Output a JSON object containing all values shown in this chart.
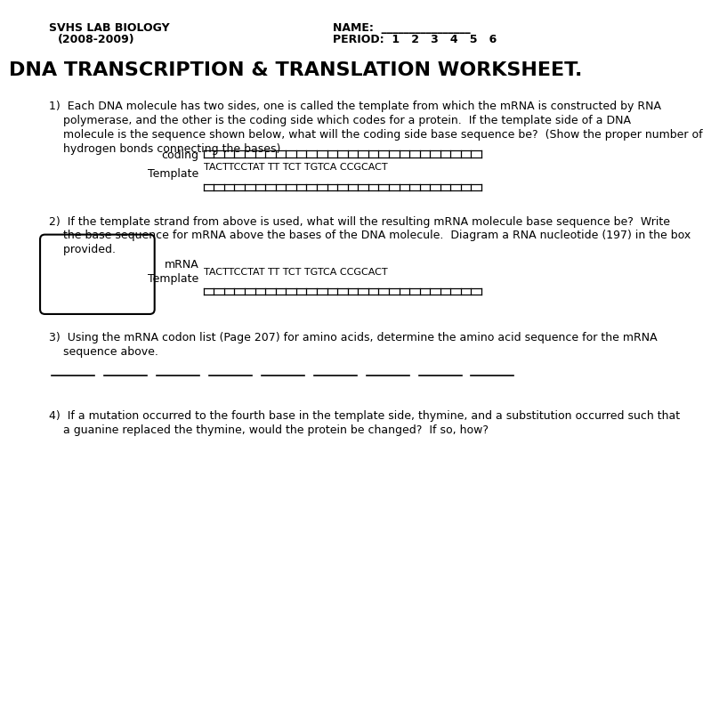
{
  "title": "DNA TRANSCRIPTION & TRANSLATION WORKSHEET.",
  "header_left_line1": "SVHS LAB BIOLOGY",
  "header_left_line2": "(2008-2009)",
  "header_right_line1": "NAME:  ________________",
  "header_right_line2": "PERIOD:  1   2   3   4   5   6",
  "coding_label": "coding",
  "template_label": "Template",
  "dna_sequence": "TACTTCCTATTT TCT TGTCA CCGCACT",
  "mrna_label": "mRNA",
  "template_label2": "Template",
  "dna_sequence2": "TACTTCCTATTT TCT TGTCA CCGCACT",
  "q1_lines": [
    "1)  Each DNA molecule has two sides, one is called the template from which the mRNA is constructed by RNA",
    "    polymerase, and the other is the coding side which codes for a protein.  If the template side of a DNA",
    "    molecule is the sequence shown below, what will the coding side base sequence be?  (Show the proper number of",
    "    hydrogen bonds connecting the bases)"
  ],
  "q2_lines": [
    "2)  If the template strand from above is used, what will the resulting mRNA molecule base sequence be?  Write",
    "    the base sequence for mRNA above the bases of the DNA molecule.  Diagram a RNA nucleotide (197) in the box",
    "    provided."
  ],
  "q3_lines": [
    "3)  Using the mRNA codon list (Page 207) for amino acids, determine the amino acid sequence for the mRNA",
    "    sequence above."
  ],
  "q4_lines": [
    "4)  If a mutation occurred to the fourth base in the template side, thymine, and a substitution occurred such that",
    "    a guanine replaced the thymine, would the protein be changed?  If so, how?"
  ],
  "bg_color": "#ffffff",
  "text_color": "#000000",
  "n_ticks": 28,
  "n_blanks": 9
}
